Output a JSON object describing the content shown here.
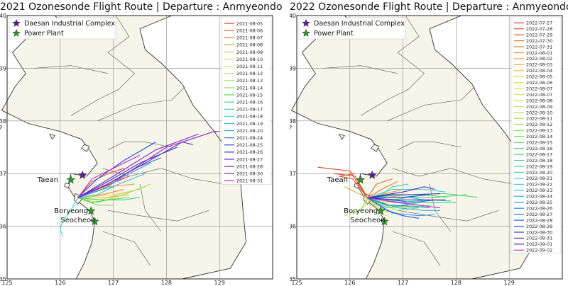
{
  "panels": [
    {
      "title": "2021 Ozonesonde Flight Route | Departure : Anmyeondo",
      "legend_sites": [
        "Daesan Industrial Complex",
        "Power Plant"
      ],
      "x_ticks": [
        "125",
        "126",
        "127",
        "128",
        "129"
      ],
      "y_ticks": [
        "35",
        "36",
        "37",
        "38",
        "39",
        "40"
      ],
      "sites": [
        "Taean",
        "Boryeong",
        "Seocheon"
      ],
      "dates": [
        "2021-08-05",
        "2021-08-06",
        "2021-08-07",
        "2021-08-08",
        "2021-08-09",
        "2021-08-10",
        "2021-08-11",
        "2021-08-12",
        "2021-08-13",
        "2021-08-14",
        "2021-08-15",
        "2021-08-16",
        "2021-08-17",
        "2021-08-18",
        "2021-08-19",
        "2021-08-20",
        "2021-08-24",
        "2021-08-25",
        "2021-08-26",
        "2021-08-27",
        "2021-08-28",
        "2021-08-30",
        "2021-08-31"
      ],
      "colors": [
        "#e03a2a",
        "#e65a2c",
        "#ec7a2f",
        "#f29a38",
        "#f2b847",
        "#f0d45a",
        "#e4e06a",
        "#c6e061",
        "#a2e05b",
        "#7ede56",
        "#5cd652",
        "#4cd07a",
        "#48cfa6",
        "#45cfcf",
        "#3cbde0",
        "#2f9ae4",
        "#2572e0",
        "#2348d6",
        "#3530c8",
        "#5628c4",
        "#7a24c2",
        "#9d22c4",
        "#bf26c4"
      ]
    },
    {
      "title": "2022 Ozonesonde Flight Route | Departure : Anmyeondo",
      "legend_sites": [
        "Daesan Industrial Complex",
        "Power Plant"
      ],
      "x_ticks": [
        "125",
        "126",
        "127",
        "128",
        "129"
      ],
      "y_ticks": [
        "35",
        "36",
        "37",
        "38",
        "39",
        "40"
      ],
      "sites": [
        "Taean",
        "Boryeong",
        "Seocheon"
      ],
      "dates": [
        "2022-07-27",
        "2022-07-28",
        "2022-07-29",
        "2022-07-30",
        "2022-07-31",
        "2022-08-01",
        "2022-08-02",
        "2022-08-03",
        "2022-08-04",
        "2022-08-05",
        "2022-08-06",
        "2022-08-07",
        "2022-08-07",
        "2022-08-08",
        "2022-08-09",
        "2022-08-10",
        "2022-08-11",
        "2022-08-12",
        "2022-08-13",
        "2022-08-14",
        "2022-08-15",
        "2022-08-16",
        "2022-08-17",
        "2022-08-18",
        "2022-08-19",
        "2022-08-20",
        "2022-08-21",
        "2022-08-22",
        "2022-08-23",
        "2022-08-24",
        "2022-08-25",
        "2022-08-26",
        "2022-08-27",
        "2022-08-28",
        "2022-08-29",
        "2022-08-30",
        "2022-08-31",
        "2022-09-01",
        "2022-09-02"
      ],
      "colors": [
        "#e03a2a",
        "#e24a2b",
        "#e65a2c",
        "#e96a2e",
        "#ec7a2f",
        "#ef8a33",
        "#f29a38",
        "#f2a93f",
        "#f2b847",
        "#f1c650",
        "#f0d45a",
        "#eadb62",
        "#e4e06a",
        "#d5e065",
        "#c6e061",
        "#b4e05e",
        "#a2e05b",
        "#90df58",
        "#7ede56",
        "#6dda54",
        "#5cd652",
        "#54d366",
        "#4cd07a",
        "#4ad090",
        "#48cfa6",
        "#46cfba",
        "#45cfcf",
        "#40c6d8",
        "#3cbde0",
        "#35abe2",
        "#2f9ae4",
        "#2a86e2",
        "#2572e0",
        "#245ddb",
        "#2348d6",
        "#2c3ccf",
        "#3530c8",
        "#4a2ac6",
        "#bf26c4"
      ]
    }
  ]
}
